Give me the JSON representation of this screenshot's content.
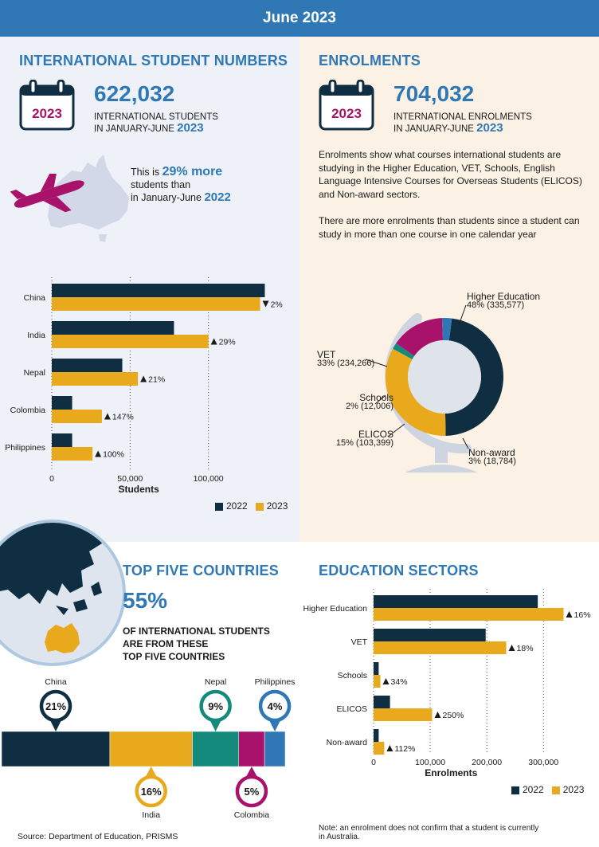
{
  "header": {
    "title": "June 2023"
  },
  "students": {
    "title": "INTERNATIONAL STUDENT NUMBERS",
    "calendar_year": "2023",
    "number": "622,032",
    "caption_line1": "INTERNATIONAL STUDENTS",
    "caption_line2_prefix": "IN JANUARY-JUNE",
    "caption_year": "2023",
    "more_prefix": "This is",
    "more_pct": "29% more",
    "more_line2": "students than",
    "more_line3_prefix": "in January-June",
    "more_year": "2022"
  },
  "enrolments": {
    "title": "ENROLMENTS",
    "calendar_year": "2023",
    "number": "704,032",
    "caption_line1": "INTERNATIONAL ENROLMENTS",
    "caption_line2_prefix": "IN JANUARY-JUNE",
    "caption_year": "2023",
    "para1": "Enrolments show what courses international students are studying in the Higher Education, VET, Schools, English Language Intensive Courses for Overseas Students (ELICOS) and Non-award sectors.",
    "para2": "There are more enrolments than students since a student can study in more than one course in one calendar year"
  },
  "top_five": {
    "title": "TOP FIVE COUNTRIES",
    "pct": "55%",
    "line1": "OF INTERNATIONAL STUDENTS",
    "line2": "ARE FROM THESE",
    "line3": "TOP FIVE COUNTRIES"
  },
  "sectors": {
    "title": "EDUCATION SECTORS"
  },
  "legend": {
    "y2022": "2022",
    "y2023": "2023"
  },
  "footer": {
    "source": "Source: Department of Education, PRISMS",
    "note_line1": "Note: an enrolment does not confirm that a student is currently",
    "note_line2": "in Australia."
  },
  "colors": {
    "y2022": "#0f2e42",
    "y2023": "#e9a91d",
    "accent": "#2f78b5",
    "magenta": "#a9126b",
    "teal": "#148a7d"
  },
  "icons": [
    "calendar-icon",
    "airplane-icon",
    "australia-map-icon",
    "globe-icon",
    "globe-stand-icon"
  ],
  "chart_data": [
    {
      "type": "bar",
      "orientation": "horizontal",
      "categories": [
        "China",
        "India",
        "Nepal",
        "Colombia",
        "Philippines"
      ],
      "series": [
        {
          "name": "2022",
          "values": [
            136000,
            78000,
            45000,
            13000,
            13000
          ]
        },
        {
          "name": "2023",
          "values": [
            133000,
            100000,
            55000,
            32000,
            26000
          ]
        }
      ],
      "annotations": [
        {
          "dir": "down",
          "label": "2%"
        },
        {
          "dir": "up",
          "label": "29%"
        },
        {
          "dir": "up",
          "label": "21%"
        },
        {
          "dir": "up",
          "label": "147%"
        },
        {
          "dir": "up",
          "label": "100%"
        }
      ],
      "xlabel": "Students",
      "xticks": [
        0,
        50000,
        100000
      ],
      "xtick_labels": [
        "0",
        "50,000",
        "100,000"
      ],
      "xlim": [
        0,
        150000
      ],
      "grid": "vertical dotted"
    },
    {
      "type": "pie",
      "variant": "donut",
      "slices": [
        {
          "label": "Higher Education",
          "pct": 48,
          "value": 335577,
          "text": "48% (335,577)",
          "color": "#0f2e42"
        },
        {
          "label": "VET",
          "pct": 33,
          "value": 234266,
          "text": "33% (234,266)",
          "color": "#e9a91d"
        },
        {
          "label": "Schools",
          "pct": 2,
          "value": 12006,
          "text": "2% (12,006)",
          "color": "#148a7d"
        },
        {
          "label": "ELICOS",
          "pct": 15,
          "value": 103399,
          "text": "15% (103,399)",
          "color": "#a9126b"
        },
        {
          "label": "Non-award",
          "pct": 3,
          "value": 18784,
          "text": "3% (18,784)",
          "color": "#2f78b5"
        }
      ]
    },
    {
      "type": "bar",
      "variant": "stacked-100",
      "categories": [
        "China",
        "India",
        "Nepal",
        "Colombia",
        "Philippines"
      ],
      "values": [
        21,
        16,
        9,
        5,
        4
      ],
      "labels": [
        "21%",
        "16%",
        "9%",
        "5%",
        "4%"
      ],
      "colors": [
        "#0f2e42",
        "#e9a91d",
        "#148a7d",
        "#a9126b",
        "#2f78b5"
      ]
    },
    {
      "type": "bar",
      "orientation": "horizontal",
      "categories": [
        "Higher Education",
        "VET",
        "Schools",
        "ELICOS",
        "Non-award"
      ],
      "series": [
        {
          "name": "2022",
          "values": [
            290000,
            198000,
            9000,
            29000,
            9000
          ]
        },
        {
          "name": "2023",
          "values": [
            335577,
            234266,
            12006,
            103399,
            18784
          ]
        }
      ],
      "annotations": [
        {
          "dir": "up",
          "label": "16%"
        },
        {
          "dir": "up",
          "label": "18%"
        },
        {
          "dir": "up",
          "label": "34%"
        },
        {
          "dir": "up",
          "label": "250%"
        },
        {
          "dir": "up",
          "label": "112%"
        }
      ],
      "xlabel": "Enrolments",
      "xticks": [
        0,
        100000,
        200000,
        300000
      ],
      "xtick_labels": [
        "0",
        "100,000",
        "200,000",
        "300,000"
      ],
      "xlim": [
        0,
        370000
      ],
      "grid": "vertical dotted"
    }
  ]
}
